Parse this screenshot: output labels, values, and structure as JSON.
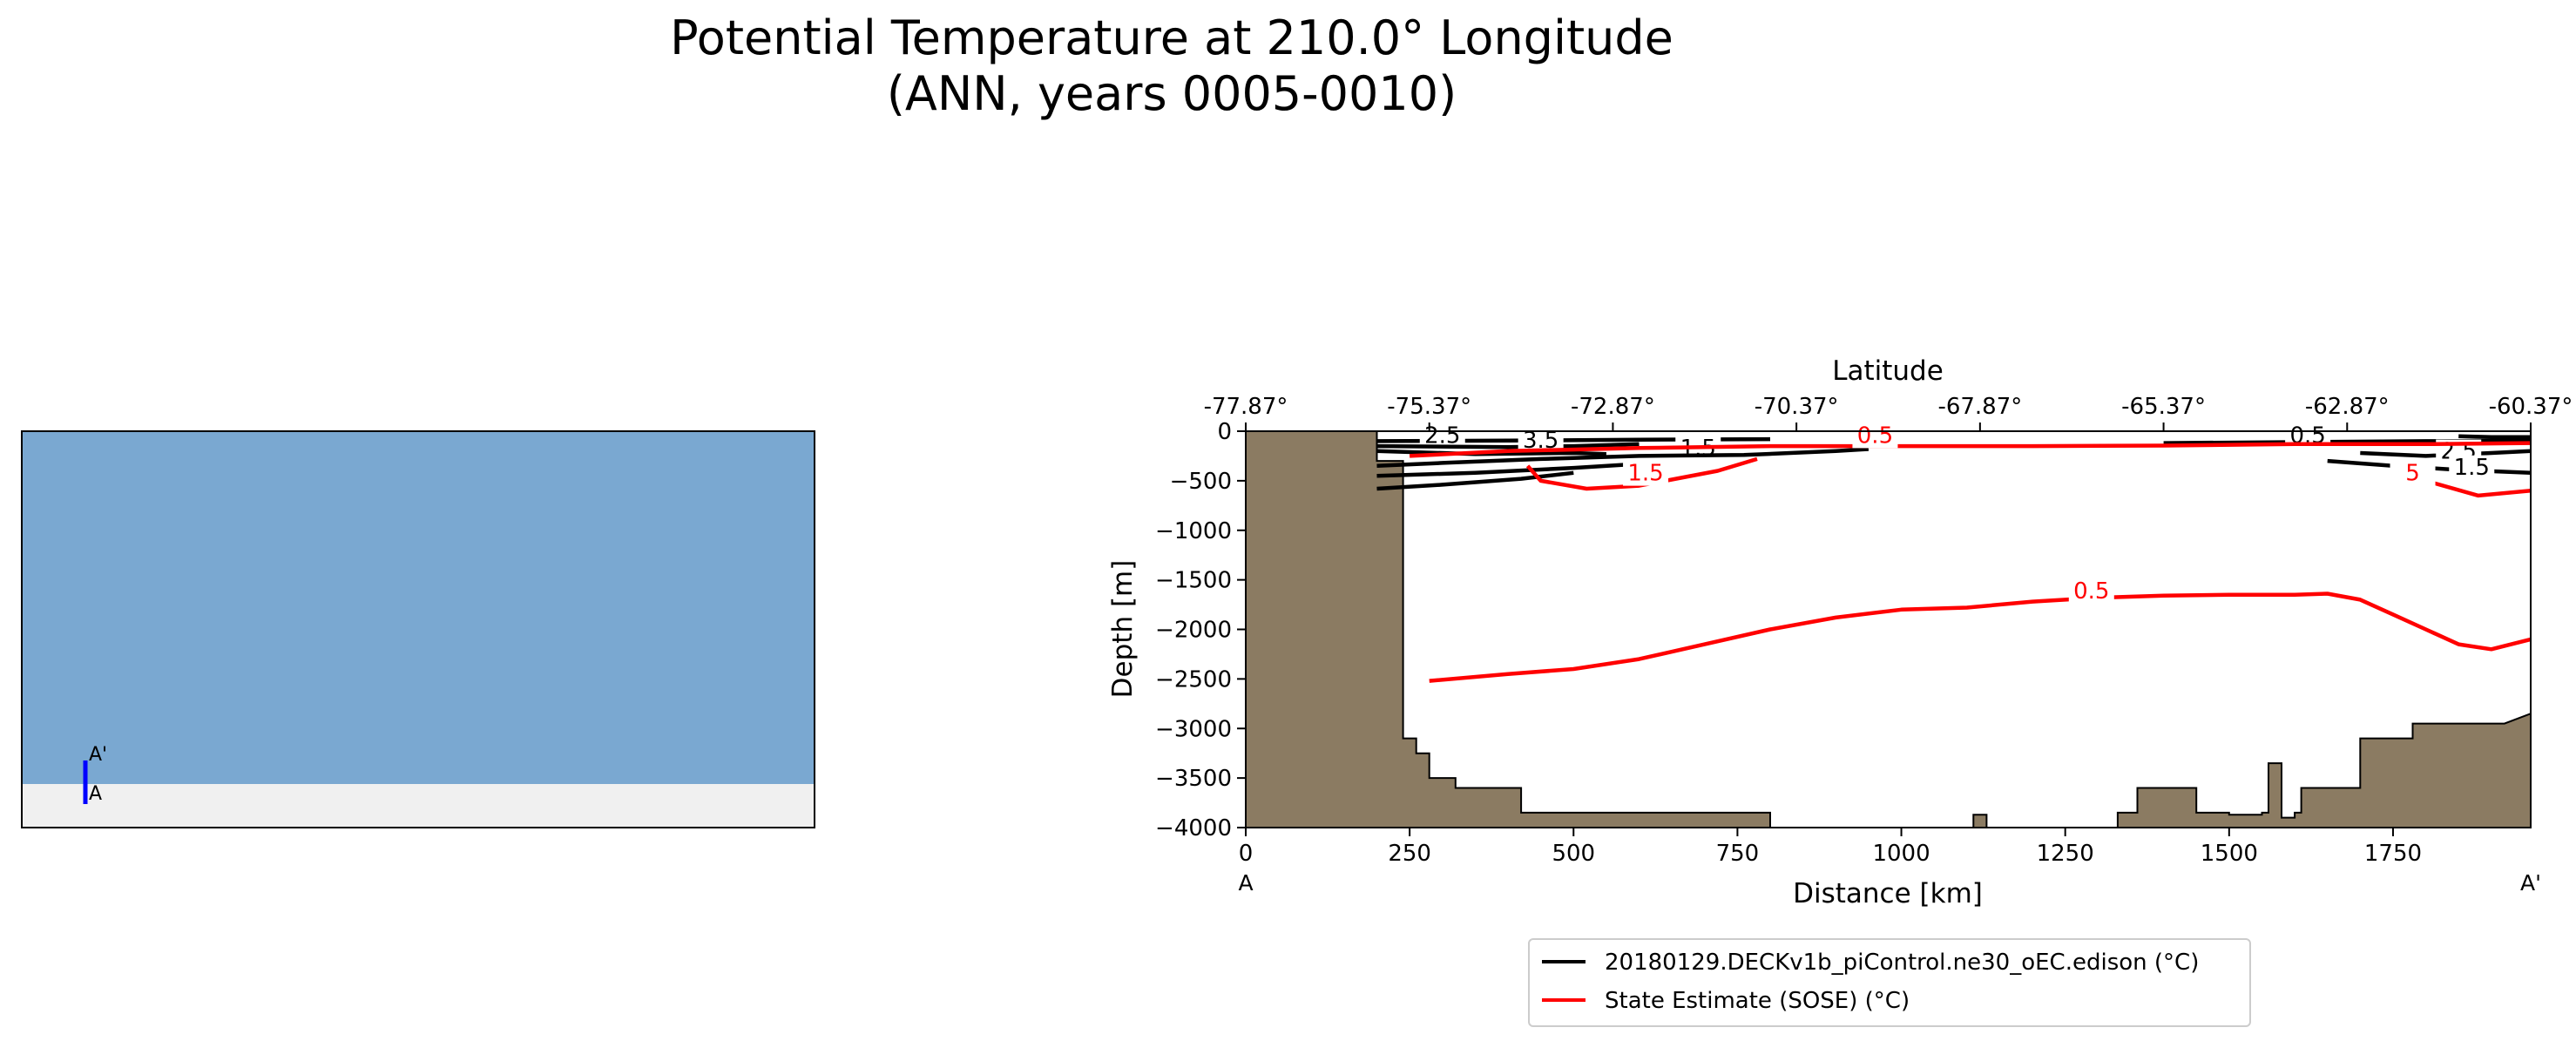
{
  "figure": {
    "title_line1": "Potential Temperature at 210.0° Longitude",
    "title_line2": "(ANN, years 0005-0010)"
  },
  "inset_map": {
    "type": "map",
    "description": "Global map with blue transect line",
    "label_start": "A",
    "label_end": "A'"
  },
  "chart_data": {
    "type": "line",
    "title": "",
    "xlabel": "Distance [km]",
    "ylabel": "Depth [m]",
    "secondary_xlabel": "Latitude",
    "xlim": [
      0,
      1960
    ],
    "ylim": [
      -4000,
      0
    ],
    "xticks": [
      0,
      250,
      500,
      750,
      1000,
      1250,
      1500,
      1750
    ],
    "yticks": [
      0,
      -500,
      -1000,
      -1500,
      -2000,
      -2500,
      -3000,
      -3500,
      -4000
    ],
    "xtick_labels": [
      "0",
      "250",
      "500",
      "750",
      "1000",
      "1250",
      "1500",
      "1750"
    ],
    "ytick_labels": [
      "0",
      "−500",
      "−1000",
      "−1500",
      "−2000",
      "−2500",
      "−3000",
      "−3500",
      "−4000"
    ],
    "secondary_xticks": [
      0,
      280,
      560,
      840,
      1120,
      1400,
      1680,
      1960
    ],
    "secondary_xtick_labels": [
      "-77.87°",
      "-75.37°",
      "-72.87°",
      "-70.37°",
      "-67.87°",
      "-65.37°",
      "-62.87°",
      "-60.37°"
    ],
    "endpoint_labels": {
      "start": "A",
      "end": "A'"
    },
    "bathymetry": [
      [
        0,
        0
      ],
      [
        200,
        0
      ],
      [
        200,
        -300
      ],
      [
        240,
        -300
      ],
      [
        240,
        -3100
      ],
      [
        260,
        -3100
      ],
      [
        260,
        -3250
      ],
      [
        280,
        -3250
      ],
      [
        280,
        -3500
      ],
      [
        320,
        -3500
      ],
      [
        320,
        -3600
      ],
      [
        420,
        -3600
      ],
      [
        420,
        -3850
      ],
      [
        800,
        -3850
      ],
      [
        800,
        -4000
      ],
      [
        1110,
        -4000
      ],
      [
        1110,
        -3870
      ],
      [
        1130,
        -3870
      ],
      [
        1130,
        -4000
      ],
      [
        1330,
        -4000
      ],
      [
        1330,
        -3850
      ],
      [
        1360,
        -3850
      ],
      [
        1360,
        -3600
      ],
      [
        1450,
        -3600
      ],
      [
        1450,
        -3850
      ],
      [
        1500,
        -3850
      ],
      [
        1500,
        -3870
      ],
      [
        1550,
        -3870
      ],
      [
        1550,
        -3850
      ],
      [
        1560,
        -3850
      ],
      [
        1560,
        -3350
      ],
      [
        1580,
        -3350
      ],
      [
        1580,
        -3900
      ],
      [
        1600,
        -3900
      ],
      [
        1600,
        -3850
      ],
      [
        1610,
        -3850
      ],
      [
        1610,
        -3600
      ],
      [
        1700,
        -3600
      ],
      [
        1700,
        -3100
      ],
      [
        1780,
        -3100
      ],
      [
        1780,
        -2950
      ],
      [
        1920,
        -2950
      ],
      [
        1960,
        -2850
      ],
      [
        1960,
        -4000
      ],
      [
        0,
        -4000
      ]
    ],
    "series": [
      {
        "name": "20180129.DECKv1b_piControl.ne30_oEC.edison (°C)",
        "color": "#000000",
        "contours": [
          {
            "label": "2.5",
            "label_pos": [
              300,
              -100
            ],
            "points": [
              [
                200,
                -100
              ],
              [
                400,
                -95
              ],
              [
                600,
                -85
              ],
              [
                800,
                -80
              ]
            ]
          },
          {
            "label": "3.5",
            "label_pos": [
              450,
              -150
            ],
            "points": [
              [
                200,
                -150
              ],
              [
                400,
                -160
              ],
              [
                500,
                -150
              ],
              [
                600,
                -130
              ]
            ]
          },
          {
            "label": "1.5",
            "label_pos": [
              690,
              -230
            ],
            "points": [
              [
                200,
                -200
              ],
              [
                350,
                -230
              ],
              [
                500,
                -220
              ],
              [
                550,
                -230
              ]
            ]
          },
          {
            "label": "",
            "label_pos": null,
            "points": [
              [
                200,
                -350
              ],
              [
                300,
                -320
              ],
              [
                450,
                -280
              ],
              [
                600,
                -250
              ],
              [
                760,
                -240
              ],
              [
                900,
                -200
              ],
              [
                950,
                -180
              ]
            ]
          },
          {
            "label": "",
            "label_pos": null,
            "points": [
              [
                200,
                -450
              ],
              [
                350,
                -420
              ],
              [
                500,
                -370
              ],
              [
                600,
                -330
              ]
            ]
          },
          {
            "label": "",
            "label_pos": null,
            "points": [
              [
                200,
                -580
              ],
              [
                300,
                -540
              ],
              [
                420,
                -480
              ],
              [
                500,
                -420
              ]
            ]
          },
          {
            "label": "0.5",
            "label_pos": [
              1620,
              -100
            ],
            "points": [
              [
                1400,
                -120
              ],
              [
                1600,
                -110
              ],
              [
                1800,
                -100
              ],
              [
                1960,
                -95
              ]
            ]
          },
          {
            "label": "2.5",
            "label_pos": [
              1850,
              -260
            ],
            "points": [
              [
                1700,
                -220
              ],
              [
                1800,
                -250
              ],
              [
                1900,
                -220
              ],
              [
                1960,
                -200
              ]
            ]
          },
          {
            "label": "1.5",
            "label_pos": [
              1870,
              -420
            ],
            "points": [
              [
                1650,
                -300
              ],
              [
                1750,
                -350
              ],
              [
                1850,
                -390
              ],
              [
                1960,
                -420
              ]
            ]
          },
          {
            "label": "",
            "label_pos": null,
            "points": [
              [
                1850,
                -50
              ],
              [
                1900,
                -60
              ],
              [
                1960,
                -60
              ]
            ]
          }
        ]
      },
      {
        "name": "State Estimate (SOSE) (°C)",
        "color": "#ff0000",
        "contours": [
          {
            "label": "0.5",
            "label_pos": [
              960,
              -100
            ],
            "points": [
              [
                250,
                -250
              ],
              [
                400,
                -200
              ],
              [
                600,
                -170
              ],
              [
                800,
                -150
              ],
              [
                1000,
                -150
              ],
              [
                1200,
                -150
              ],
              [
                1400,
                -145
              ],
              [
                1600,
                -130
              ],
              [
                1800,
                -130
              ],
              [
                1960,
                -120
              ]
            ]
          },
          {
            "label": "1.5",
            "label_pos": [
              610,
              -480
            ],
            "points": [
              [
                430,
                -350
              ],
              [
                450,
                -500
              ],
              [
                520,
                -580
              ],
              [
                600,
                -550
              ],
              [
                720,
                -400
              ],
              [
                780,
                -280
              ]
            ]
          },
          {
            "label": "5",
            "label_pos": [
              1780,
              -480
            ],
            "points": [
              [
                1750,
                -350
              ],
              [
                1800,
                -500
              ],
              [
                1880,
                -650
              ],
              [
                1960,
                -600
              ]
            ]
          },
          {
            "label": "0.5",
            "label_pos": [
              1290,
              -1670
            ],
            "points": [
              [
                280,
                -2520
              ],
              [
                400,
                -2450
              ],
              [
                500,
                -2400
              ],
              [
                600,
                -2300
              ],
              [
                700,
                -2150
              ],
              [
                800,
                -2000
              ],
              [
                900,
                -1880
              ],
              [
                1000,
                -1800
              ],
              [
                1100,
                -1780
              ],
              [
                1200,
                -1720
              ],
              [
                1300,
                -1680
              ],
              [
                1400,
                -1660
              ],
              [
                1500,
                -1650
              ],
              [
                1600,
                -1650
              ],
              [
                1650,
                -1640
              ],
              [
                1700,
                -1700
              ],
              [
                1750,
                -1850
              ],
              [
                1800,
                -2000
              ],
              [
                1850,
                -2150
              ],
              [
                1900,
                -2200
              ],
              [
                1960,
                -2100
              ]
            ]
          }
        ]
      }
    ],
    "legend": [
      {
        "label": "20180129.DECKv1b_piControl.ne30_oEC.edison (°C)",
        "color": "#000000"
      },
      {
        "label": "State Estimate (SOSE) (°C)",
        "color": "#ff0000"
      }
    ],
    "legend_position": "bottom-center",
    "colors": {
      "bathymetry": "#8b7b62",
      "model": "#000000",
      "observation": "#ff0000",
      "transect": "#0000ff"
    }
  }
}
